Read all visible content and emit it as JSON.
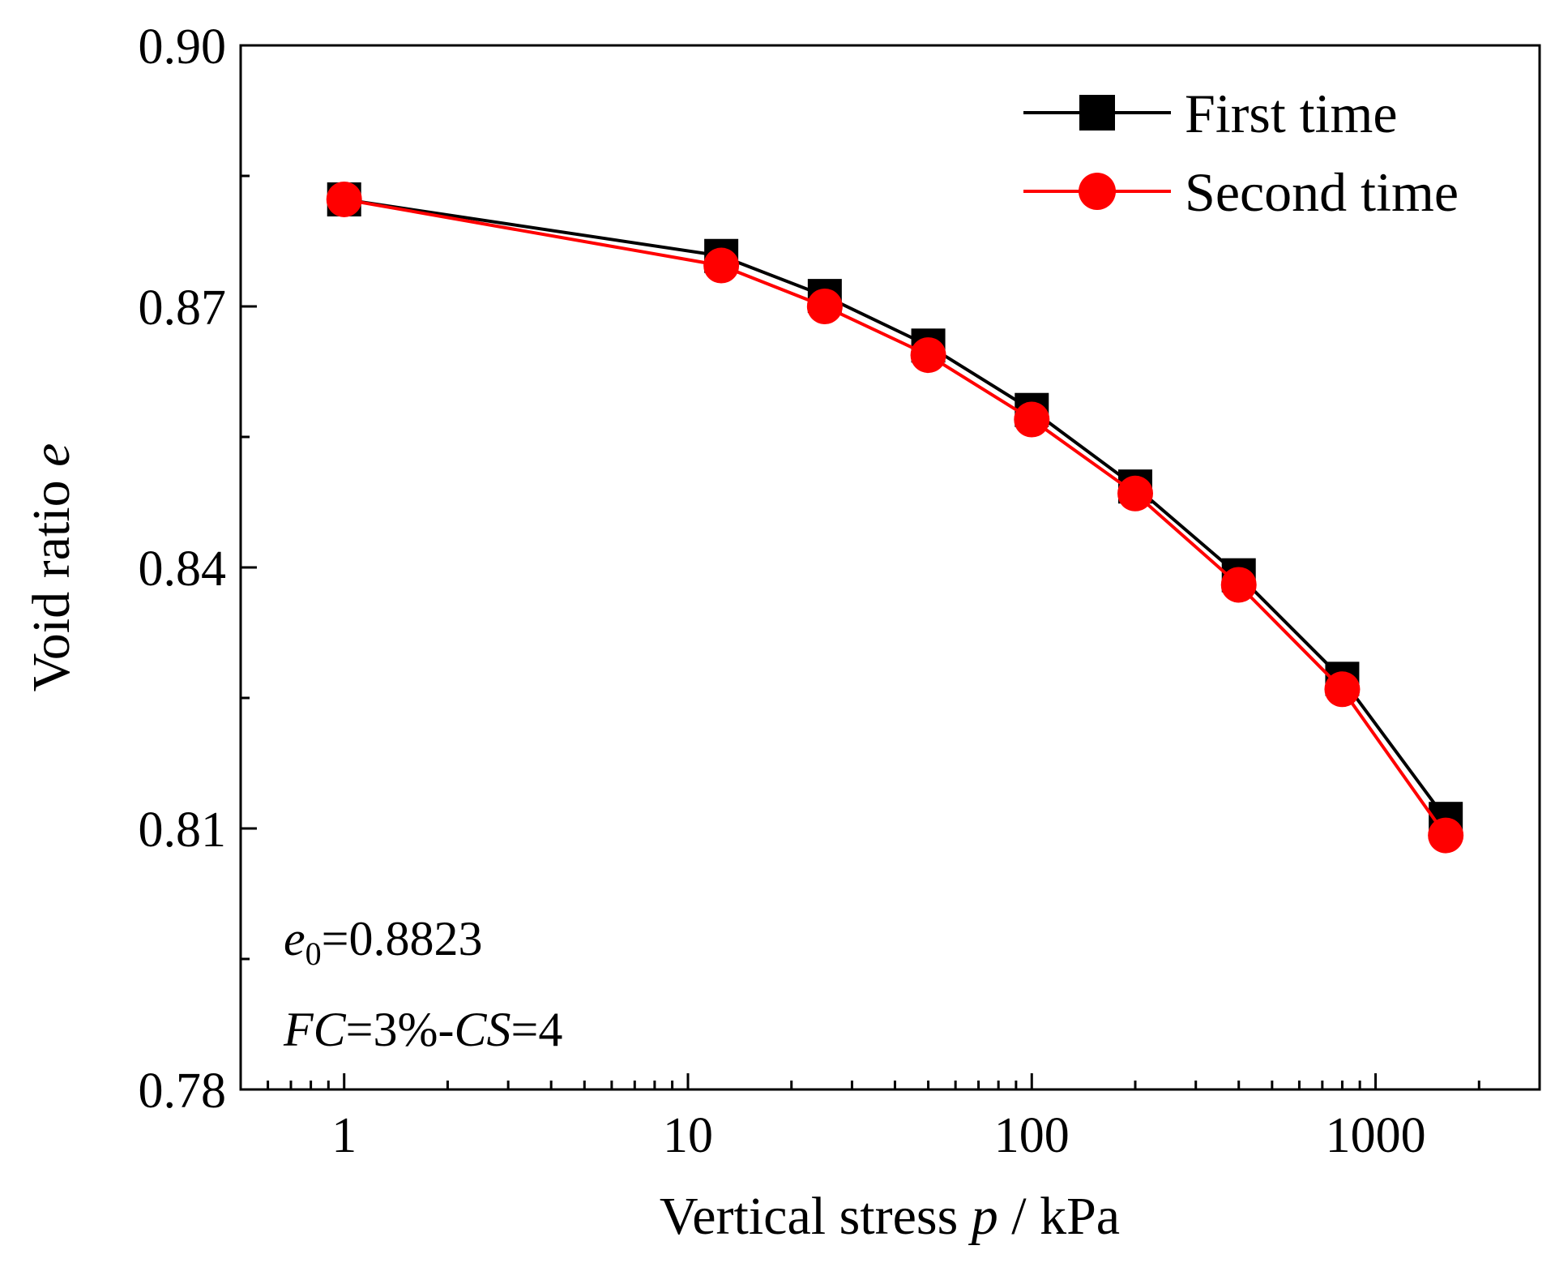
{
  "chart_data": {
    "type": "line",
    "title": "",
    "xlabel": {
      "prefix": "Vertical stress ",
      "var": "p",
      "suffix": " / kPa"
    },
    "ylabel": {
      "prefix": "Void ratio ",
      "var": "e"
    },
    "xscale": "log",
    "xlim": [
      0.5,
      3000
    ],
    "ylim": [
      0.78,
      0.9
    ],
    "x_ticks": [
      1,
      10,
      100,
      1000
    ],
    "x_tick_labels": [
      "1",
      "10",
      "100",
      "1000"
    ],
    "y_ticks": [
      0.78,
      0.81,
      0.84,
      0.87,
      0.9
    ],
    "y_tick_labels": [
      "0.78",
      "0.81",
      "0.84",
      "0.87",
      "0.90"
    ],
    "grid": false,
    "legend_position": "top-right",
    "series": [
      {
        "name": "First time",
        "color": "#000000",
        "marker": "square",
        "x": [
          1,
          12.5,
          25,
          50,
          100,
          200,
          400,
          800,
          1600
        ],
        "y": [
          0.8823,
          0.8758,
          0.8712,
          0.8655,
          0.8581,
          0.8493,
          0.8391,
          0.8272,
          0.8111
        ]
      },
      {
        "name": "Second time",
        "color": "#ff0000",
        "marker": "circle",
        "x": [
          1,
          12.5,
          25,
          50,
          100,
          200,
          400,
          800,
          1600
        ],
        "y": [
          0.8823,
          0.8747,
          0.87,
          0.8644,
          0.857,
          0.8485,
          0.838,
          0.826,
          0.8092
        ]
      }
    ],
    "annotations": [
      {
        "var": "e",
        "sub": "0",
        "text": "=0.8823"
      },
      {
        "parts": [
          {
            "text": "FC",
            "italic": true
          },
          {
            "text": "=3%-",
            "italic": false
          },
          {
            "text": "CS",
            "italic": true
          },
          {
            "text": "=4",
            "italic": false
          }
        ]
      }
    ]
  }
}
